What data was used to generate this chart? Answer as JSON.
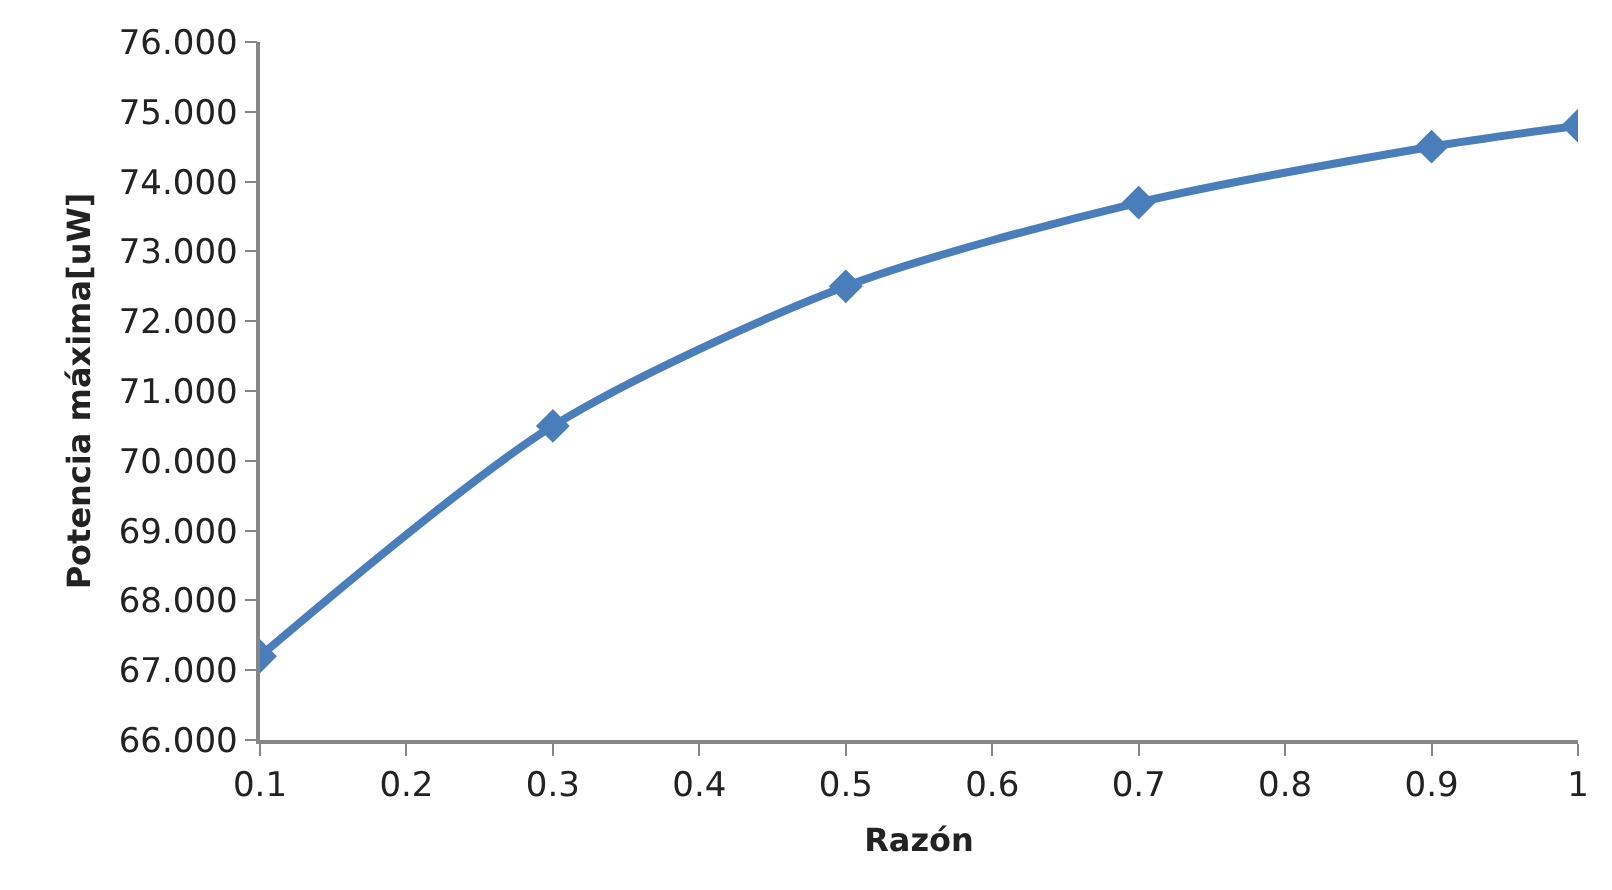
{
  "chart_data": {
    "type": "line",
    "xlabel": "Razón",
    "ylabel": "Potencia máxima[uW]",
    "x": [
      0.1,
      0.3,
      0.5,
      0.7,
      0.9,
      1.0
    ],
    "series": [
      {
        "color": "#4a7ebb",
        "values": [
          67.2,
          70.5,
          72.5,
          73.7,
          74.5,
          74.8
        ]
      }
    ],
    "xlim": [
      0.1,
      1.0
    ],
    "xticks": [
      0.1,
      0.2,
      0.3,
      0.4,
      0.5,
      0.6,
      0.7,
      0.8,
      0.9,
      1
    ],
    "ylim": [
      66,
      76
    ],
    "yticks": [
      {
        "value": 66,
        "label": "66.000"
      },
      {
        "value": 67,
        "label": "67.000"
      },
      {
        "value": 68,
        "label": "68.000"
      },
      {
        "value": 69,
        "label": "69.000"
      },
      {
        "value": 70,
        "label": "70.000"
      },
      {
        "value": 71,
        "label": "71.000"
      },
      {
        "value": 72,
        "label": "72.000"
      },
      {
        "value": 73,
        "label": "73.000"
      },
      {
        "value": 74,
        "label": "74.000"
      },
      {
        "value": 75,
        "label": "75.000"
      },
      {
        "value": 76,
        "label": "76.000"
      }
    ],
    "marker": "diamond",
    "line_style": "solid"
  }
}
